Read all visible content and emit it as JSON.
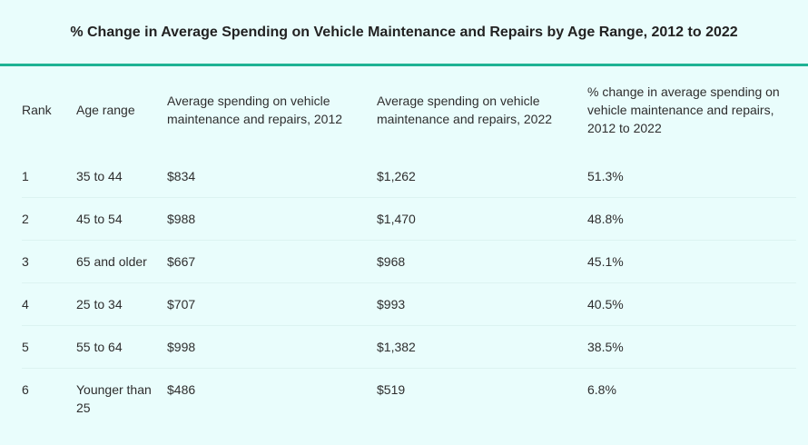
{
  "title": "% Change in Average Spending on Vehicle Maintenance and Repairs by Age Range, 2012 to 2022",
  "colors": {
    "background": "#e9fdfc",
    "accent_rule": "#1eb394"
  },
  "table": {
    "headers": [
      "Rank",
      "Age range",
      "Average spending on vehicle maintenance and repairs, 2012",
      "Average spending on vehicle maintenance and repairs, 2022",
      "% change in average spending on vehicle maintenance and repairs, 2012 to 2022"
    ],
    "rows": [
      [
        "1",
        "35 to 44",
        "$834",
        "$1,262",
        "51.3%"
      ],
      [
        "2",
        "45 to 54",
        "$988",
        "$1,470",
        "48.8%"
      ],
      [
        "3",
        "65 and older",
        "$667",
        "$968",
        "45.1%"
      ],
      [
        "4",
        "25 to 34",
        "$707",
        "$993",
        "40.5%"
      ],
      [
        "5",
        "55 to 64",
        "$998",
        "$1,382",
        "38.5%"
      ],
      [
        "6",
        "Younger than 25",
        "$486",
        "$519",
        "6.8%"
      ]
    ]
  }
}
